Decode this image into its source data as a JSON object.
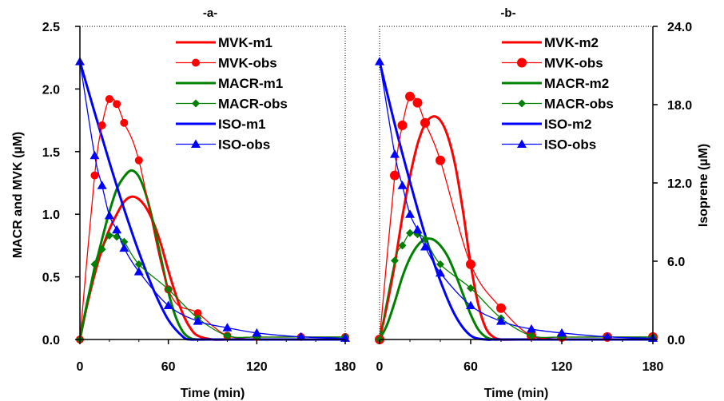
{
  "chart_data": [
    {
      "type": "line",
      "title": "-a-",
      "xlabel": "Time (min)",
      "ylabel": "MACR and MVK (µM)",
      "xlim": [
        0,
        180
      ],
      "ylim": [
        0,
        2.5
      ],
      "xticks": [
        "0",
        "60",
        "120",
        "180"
      ],
      "yticks": [
        "0.0",
        "0.5",
        "1.0",
        "1.5",
        "2.0",
        "2.5"
      ],
      "legend_position": "top-right",
      "series": [
        {
          "name": "MVK-m1",
          "axis": "left",
          "color": "#ff0000",
          "style": "model",
          "x": [
            0,
            5,
            10,
            15,
            20,
            25,
            30,
            35,
            40,
            45,
            50,
            55,
            60,
            65,
            70,
            75,
            80,
            90,
            100,
            120,
            150,
            180
          ],
          "y": [
            0,
            0.28,
            0.52,
            0.72,
            0.88,
            1.0,
            1.1,
            1.14,
            1.12,
            1.05,
            0.93,
            0.76,
            0.55,
            0.36,
            0.2,
            0.09,
            0.03,
            0,
            0,
            0,
            0,
            0
          ]
        },
        {
          "name": "MVK-obs",
          "axis": "left",
          "color": "#ff0000",
          "style": "obs",
          "marker": "circle",
          "x": [
            0,
            10,
            15,
            20,
            25,
            30,
            40,
            60,
            80,
            100,
            120,
            150,
            180
          ],
          "y": [
            0,
            1.31,
            1.71,
            1.92,
            1.88,
            1.73,
            1.43,
            0.4,
            0.21,
            0.03,
            0.02,
            0.02,
            0.02
          ]
        },
        {
          "name": "MACR-m1",
          "axis": "left",
          "color": "#008000",
          "style": "model",
          "x": [
            0,
            5,
            10,
            15,
            20,
            25,
            30,
            35,
            40,
            45,
            50,
            55,
            60,
            65,
            70,
            75,
            80,
            90,
            100,
            120,
            150,
            180
          ],
          "y": [
            0,
            0.3,
            0.56,
            0.8,
            1.02,
            1.2,
            1.3,
            1.35,
            1.3,
            1.15,
            0.92,
            0.65,
            0.38,
            0.18,
            0.06,
            0.01,
            0,
            0,
            0,
            0,
            0,
            0
          ]
        },
        {
          "name": "MACR-obs",
          "axis": "left",
          "color": "#008000",
          "style": "obs",
          "marker": "diamond",
          "x": [
            0,
            10,
            15,
            20,
            25,
            30,
            40,
            60,
            80,
            100,
            120,
            150,
            180
          ],
          "y": [
            0,
            0.6,
            0.72,
            0.83,
            0.82,
            0.78,
            0.6,
            0.4,
            0.17,
            0.03,
            0.02,
            0.02,
            0.02
          ]
        },
        {
          "name": "ISO-m1",
          "axis": "right",
          "color": "#0000ff",
          "style": "model",
          "x": [
            0,
            10,
            20,
            30,
            40,
            50,
            60,
            70,
            75,
            80,
            100,
            120,
            150,
            180
          ],
          "y": [
            21.3,
            17.4,
            13.6,
            10.0,
            6.7,
            3.8,
            1.5,
            0.2,
            0,
            0,
            0,
            0,
            0,
            0
          ]
        },
        {
          "name": "ISO-obs",
          "axis": "right",
          "color": "#0000ff",
          "style": "obs",
          "marker": "triangle",
          "x": [
            0,
            10,
            15,
            20,
            25,
            30,
            40,
            60,
            80,
            100,
            120,
            150,
            180
          ],
          "y": [
            21.3,
            14.1,
            11.8,
            9.5,
            8.4,
            7.0,
            5.2,
            2.6,
            1.4,
            0.9,
            0.5,
            0.2,
            0.1
          ]
        }
      ]
    },
    {
      "type": "line",
      "title": "-b-",
      "xlabel": "Time (min)",
      "ylabel": "Isoprene (µM)",
      "xlim": [
        0,
        180
      ],
      "ylim": [
        0,
        24
      ],
      "xticks": [
        "0",
        "60",
        "120",
        "180"
      ],
      "yticks": [
        "0.0",
        "6.0",
        "12.0",
        "18.0",
        "24.0"
      ],
      "legend_position": "top-right",
      "series": [
        {
          "name": "MVK-m2",
          "axis": "left",
          "color": "#ff0000",
          "style": "model",
          "x": [
            0,
            5,
            10,
            15,
            20,
            25,
            30,
            35,
            40,
            45,
            50,
            55,
            60,
            65,
            70,
            75,
            80,
            90,
            100,
            120,
            150,
            180
          ],
          "y": [
            0,
            0.28,
            0.6,
            0.98,
            1.3,
            1.56,
            1.72,
            1.78,
            1.75,
            1.62,
            1.38,
            1.02,
            0.6,
            0.28,
            0.09,
            0.02,
            0,
            0,
            0,
            0,
            0,
            0
          ]
        },
        {
          "name": "MVK-obs",
          "axis": "left",
          "color": "#ff0000",
          "style": "obs",
          "marker": "circle",
          "x": [
            0,
            10,
            15,
            20,
            25,
            30,
            40,
            60,
            80,
            100,
            120,
            150,
            180
          ],
          "y": [
            0,
            1.31,
            1.71,
            1.94,
            1.89,
            1.73,
            1.43,
            0.6,
            0.25,
            0.03,
            0.02,
            0.02,
            0.02
          ]
        },
        {
          "name": "MACR-m2",
          "axis": "left",
          "color": "#008000",
          "style": "model",
          "x": [
            0,
            5,
            10,
            15,
            20,
            25,
            30,
            35,
            40,
            45,
            50,
            55,
            60,
            65,
            70,
            75,
            80,
            90,
            100,
            120,
            150,
            180
          ],
          "y": [
            0,
            0.12,
            0.3,
            0.5,
            0.65,
            0.75,
            0.8,
            0.8,
            0.75,
            0.66,
            0.52,
            0.36,
            0.2,
            0.08,
            0.02,
            0,
            0,
            0,
            0,
            0,
            0,
            0
          ]
        },
        {
          "name": "MACR-obs",
          "axis": "left",
          "color": "#008000",
          "style": "obs",
          "marker": "diamond",
          "x": [
            0,
            10,
            15,
            20,
            25,
            30,
            40,
            60,
            80,
            100,
            120,
            150,
            180
          ],
          "y": [
            0,
            0.63,
            0.75,
            0.85,
            0.84,
            0.8,
            0.6,
            0.41,
            0.17,
            0.03,
            0.02,
            0.02,
            0.02
          ]
        },
        {
          "name": "ISO-m2",
          "axis": "right",
          "color": "#0000ff",
          "style": "model",
          "x": [
            0,
            10,
            20,
            30,
            40,
            50,
            60,
            70,
            75,
            80,
            100,
            120,
            150,
            180
          ],
          "y": [
            21.3,
            16.5,
            12.1,
            8.0,
            4.5,
            1.8,
            0.3,
            0,
            0,
            0,
            0,
            0,
            0,
            0
          ]
        },
        {
          "name": "ISO-obs",
          "axis": "right",
          "color": "#0000ff",
          "style": "obs",
          "marker": "triangle",
          "x": [
            0,
            10,
            15,
            20,
            25,
            30,
            40,
            60,
            80,
            100,
            120,
            150,
            180
          ],
          "y": [
            21.3,
            14.2,
            11.8,
            9.6,
            8.4,
            7.1,
            5.1,
            2.6,
            1.4,
            0.8,
            0.5,
            0.2,
            0.1
          ]
        }
      ]
    }
  ]
}
